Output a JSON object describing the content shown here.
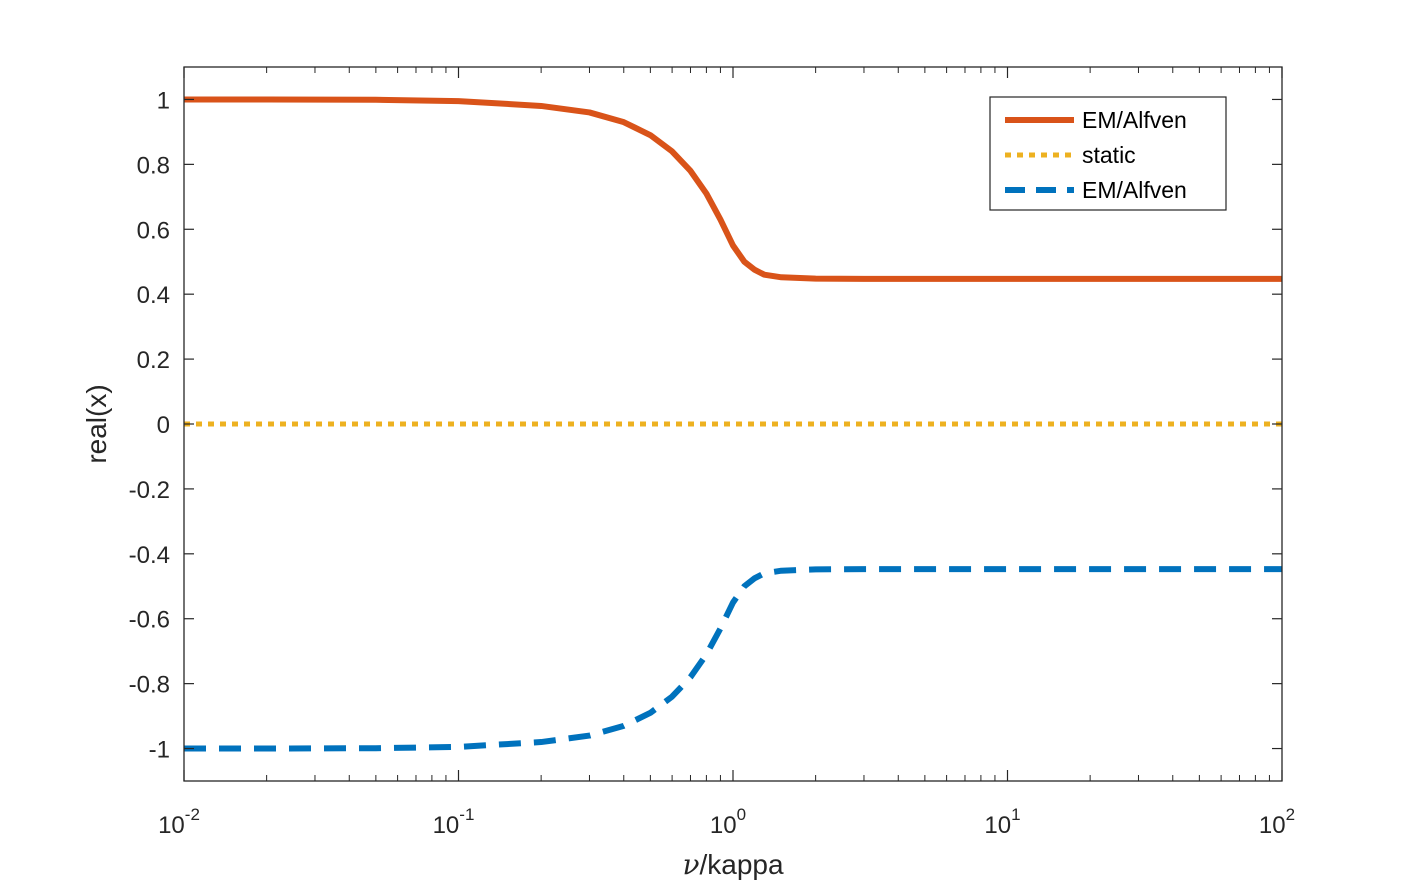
{
  "chart_data": {
    "type": "line",
    "xscale": "log",
    "xlim": [
      0.01,
      100
    ],
    "ylim": [
      -1.1,
      1.1
    ],
    "xlabel": {
      "symbol": "ν",
      "text": "/kappa"
    },
    "ylabel": "real(x)",
    "xticks": [
      {
        "base": "10",
        "exp": "-2"
      },
      {
        "base": "10",
        "exp": "-1"
      },
      {
        "base": "10",
        "exp": "0"
      },
      {
        "base": "10",
        "exp": "1"
      },
      {
        "base": "10",
        "exp": "2"
      }
    ],
    "yticks": [
      "-1",
      "-0.8",
      "-0.6",
      "-0.4",
      "-0.2",
      "0",
      "0.2",
      "0.4",
      "0.6",
      "0.8",
      "1"
    ],
    "legend_position": "top-right",
    "series": [
      {
        "name": "EM/Alfven",
        "style": "solid",
        "color": "#D95319",
        "x": [
          0.01,
          0.02,
          0.05,
          0.1,
          0.2,
          0.3,
          0.4,
          0.5,
          0.6,
          0.7,
          0.8,
          0.9,
          1.0,
          1.1,
          1.2,
          1.3,
          1.5,
          2,
          3,
          5,
          10,
          30,
          100
        ],
        "y": [
          1.0,
          1.0,
          0.999,
          0.995,
          0.98,
          0.96,
          0.93,
          0.89,
          0.84,
          0.78,
          0.71,
          0.63,
          0.55,
          0.5,
          0.475,
          0.46,
          0.452,
          0.448,
          0.447,
          0.447,
          0.447,
          0.447,
          0.447
        ]
      },
      {
        "name": "static",
        "style": "dotted",
        "color": "#EDB120",
        "x": [
          0.01,
          100
        ],
        "y": [
          0,
          0
        ]
      },
      {
        "name": "EM/Alfven",
        "style": "dashed",
        "color": "#0072BD",
        "x": [
          0.01,
          0.02,
          0.05,
          0.1,
          0.2,
          0.3,
          0.4,
          0.5,
          0.6,
          0.7,
          0.8,
          0.9,
          1.0,
          1.1,
          1.2,
          1.3,
          1.5,
          2,
          3,
          5,
          10,
          30,
          100
        ],
        "y": [
          -1.0,
          -1.0,
          -0.999,
          -0.995,
          -0.98,
          -0.96,
          -0.93,
          -0.89,
          -0.84,
          -0.78,
          -0.71,
          -0.63,
          -0.55,
          -0.5,
          -0.475,
          -0.46,
          -0.452,
          -0.448,
          -0.447,
          -0.447,
          -0.447,
          -0.447,
          -0.447
        ]
      }
    ]
  }
}
